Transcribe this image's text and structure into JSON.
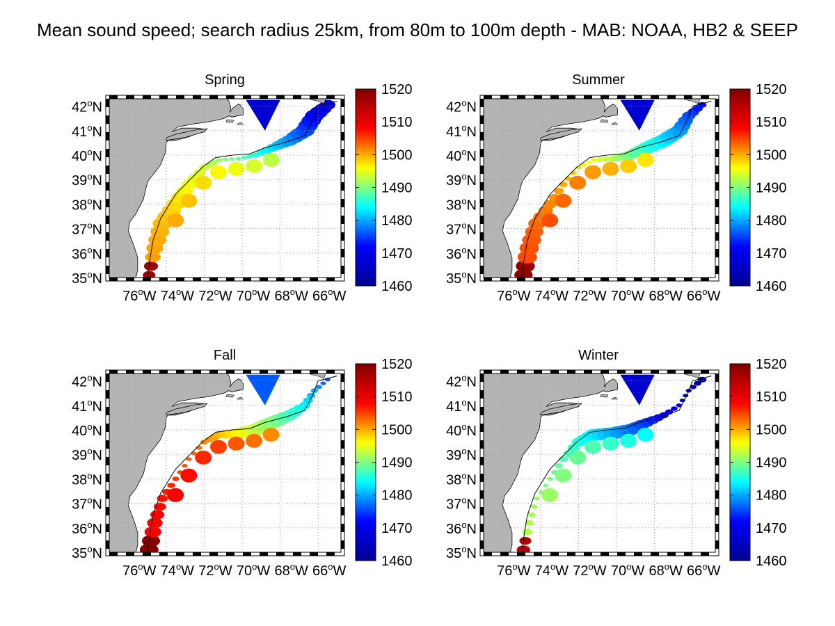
{
  "figure": {
    "title": "Mean sound speed; search radius 25km, from 80m to 100m depth - MAB: NOAA, HB2 & SEEP"
  },
  "axes": {
    "lat_ticks": [
      "42",
      "41",
      "40",
      "39",
      "38",
      "37",
      "36",
      "35"
    ],
    "lat_suffix": "N",
    "lon_ticks": [
      "76",
      "74",
      "72",
      "70",
      "68",
      "66"
    ],
    "lon_suffix": "W",
    "degree_symbol": "o"
  },
  "colorbar": {
    "ticks": [
      "1520",
      "1510",
      "1500",
      "1490",
      "1480",
      "1470",
      "1460"
    ],
    "min": 1460,
    "max": 1520,
    "colormap": [
      "#00008f",
      "#0000ff",
      "#00ffff",
      "#ffff00",
      "#ff0000",
      "#800000"
    ]
  },
  "colors": {
    "land": "#b4b4b4",
    "coastline": "#000000",
    "grid": "#9a9a9a"
  },
  "panels": [
    {
      "id": "spring",
      "title": "Spring",
      "bias": 0
    },
    {
      "id": "summer",
      "title": "Summer",
      "bias": 4
    },
    {
      "id": "fall",
      "title": "Fall",
      "bias": 8
    },
    {
      "id": "winter",
      "title": "Winter",
      "bias": -8
    }
  ]
}
